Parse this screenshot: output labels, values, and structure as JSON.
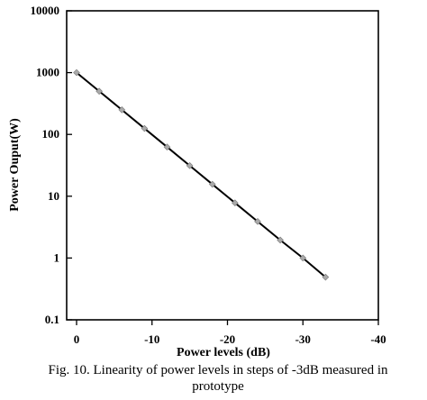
{
  "caption": {
    "line1": "Fig. 10. Linearity of power levels in steps of -3dB measured in",
    "line2": "prototype"
  },
  "chart_data": {
    "type": "line",
    "title": "",
    "xlabel": "Power levels (dB)",
    "ylabel": "Power Ouput(W)",
    "x_ticks": [
      0,
      -10,
      -20,
      -30,
      -40
    ],
    "x_tick_labels": [
      "0",
      "-10",
      "-20",
      "-30",
      "-40"
    ],
    "y_ticks": [
      0.1,
      1,
      10,
      100,
      1000,
      10000
    ],
    "y_tick_labels": [
      "0.1",
      "1",
      "10",
      "100",
      "1000",
      "10000"
    ],
    "xlim": [
      0,
      -40
    ],
    "ylim": [
      0.1,
      10000
    ],
    "y_scale": "log",
    "grid": false,
    "legend": "none",
    "series": [
      {
        "x": [
          0,
          -3,
          -6,
          -9,
          -12,
          -15,
          -18,
          -21,
          -24,
          -27,
          -30,
          -33
        ],
        "values": [
          1000,
          500,
          250,
          125,
          62.5,
          31.25,
          15.6,
          7.8,
          3.9,
          1.95,
          1.0,
          0.49
        ],
        "line_color": "#000000",
        "marker_color": "#aaaaaa"
      }
    ]
  }
}
